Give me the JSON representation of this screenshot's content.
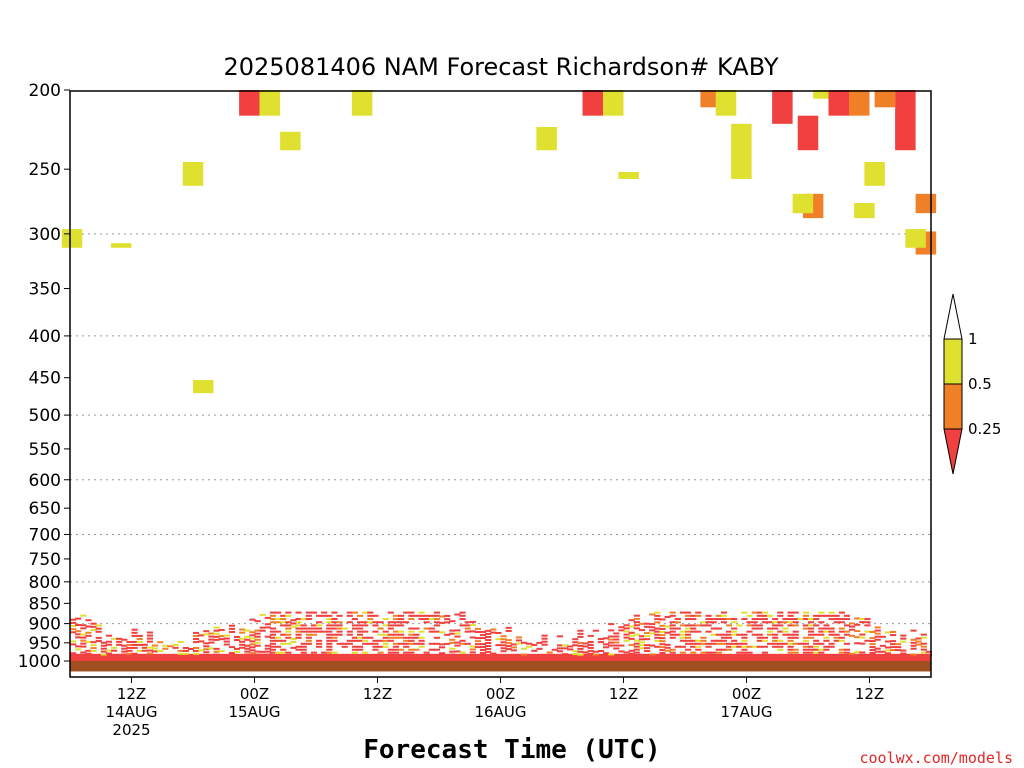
{
  "chart_data": {
    "type": "heatmap",
    "title": "2025081406 NAM Forecast Richardson# KABY",
    "xlabel": "Forecast Time (UTC)",
    "ylabel": "",
    "y_scale": "log",
    "y_inverted": true,
    "ylim": [
      1000,
      200
    ],
    "y_ticks": [
      200,
      250,
      300,
      350,
      400,
      450,
      500,
      550,
      600,
      650,
      700,
      750,
      800,
      850,
      900,
      950,
      1000
    ],
    "gridlines_at": [
      300,
      400,
      500,
      600,
      700,
      800,
      900
    ],
    "x_ticks": [
      {
        "line1": "12Z",
        "line2": "14AUG",
        "line3": "2025"
      },
      {
        "line1": "00Z",
        "line2": "15AUG",
        "line3": ""
      },
      {
        "line1": "12Z",
        "line2": "",
        "line3": ""
      },
      {
        "line1": "00Z",
        "line2": "16AUG",
        "line3": ""
      },
      {
        "line1": "12Z",
        "line2": "",
        "line3": ""
      },
      {
        "line1": "00Z",
        "line2": "17AUG",
        "line3": ""
      },
      {
        "line1": "12Z",
        "line2": "",
        "line3": ""
      }
    ],
    "forecast_hours_shown": [
      0,
      84
    ],
    "colorbar": {
      "levels": [
        "1",
        "0.5",
        "0.25"
      ],
      "colors": {
        "below_0_25": "#f04040",
        "0_25_to_0_5": "#f08028",
        "0_5_to_1": "#e0e030",
        "above_1": "#ffffff"
      }
    },
    "ground_color": "#a05020",
    "cells": [
      {
        "f": 17.5,
        "p1": 200,
        "p2": 215,
        "c": "red"
      },
      {
        "f": 19.5,
        "p1": 200,
        "p2": 215,
        "c": "yellow"
      },
      {
        "f": 21.5,
        "p1": 225,
        "p2": 237,
        "c": "yellow"
      },
      {
        "f": 28.5,
        "p1": 200,
        "p2": 215,
        "c": "yellow"
      },
      {
        "f": 46.5,
        "p1": 222,
        "p2": 237,
        "c": "yellow"
      },
      {
        "f": 51.0,
        "p1": 200,
        "p2": 215,
        "c": "red"
      },
      {
        "f": 53.0,
        "p1": 200,
        "p2": 215,
        "c": "yellow"
      },
      {
        "f": 62.5,
        "p1": 200,
        "p2": 210,
        "c": "orange"
      },
      {
        "f": 64.0,
        "p1": 200,
        "p2": 215,
        "c": "yellow"
      },
      {
        "f": 65.5,
        "p1": 220,
        "p2": 257,
        "c": "yellow"
      },
      {
        "f": 69.5,
        "p1": 200,
        "p2": 220,
        "c": "red"
      },
      {
        "f": 72.0,
        "p1": 215,
        "p2": 237,
        "c": "red"
      },
      {
        "f": 73.5,
        "p1": 200,
        "p2": 205,
        "c": "yellow"
      },
      {
        "f": 75.0,
        "p1": 200,
        "p2": 215,
        "c": "red"
      },
      {
        "f": 77.0,
        "p1": 200,
        "p2": 215,
        "c": "orange"
      },
      {
        "f": 81.5,
        "p1": 200,
        "p2": 237,
        "c": "red"
      },
      {
        "f": 79.5,
        "p1": 200,
        "p2": 210,
        "c": "orange"
      },
      {
        "f": 78.5,
        "p1": 245,
        "p2": 262,
        "c": "yellow"
      },
      {
        "f": 72.5,
        "p1": 268,
        "p2": 287,
        "c": "orange"
      },
      {
        "f": 71.5,
        "p1": 268,
        "p2": 283,
        "c": "yellow"
      },
      {
        "f": 77.5,
        "p1": 275,
        "p2": 287,
        "c": "yellow"
      },
      {
        "f": 83.5,
        "p1": 268,
        "p2": 283,
        "c": "orange"
      },
      {
        "f": 83.5,
        "p1": 298,
        "p2": 318,
        "c": "orange"
      },
      {
        "f": 82.5,
        "p1": 296,
        "p2": 312,
        "c": "yellow"
      },
      {
        "f": 0.2,
        "p1": 296,
        "p2": 312,
        "c": "yellow"
      },
      {
        "f": 5.0,
        "p1": 308,
        "p2": 312,
        "c": "yellow"
      },
      {
        "f": 12.0,
        "p1": 245,
        "p2": 262,
        "c": "yellow"
      },
      {
        "f": 13.0,
        "p1": 453,
        "p2": 470,
        "c": "yellow"
      },
      {
        "f": 54.5,
        "p1": 252,
        "p2": 257,
        "c": "yellow"
      }
    ],
    "bands": [
      {
        "f1": 0,
        "f2": 84,
        "ptop": 980,
        "pbot": 1000,
        "c": "red"
      },
      {
        "f1": 0,
        "f2": 84,
        "ptop": 1000,
        "pbot": 1030,
        "c": "ground"
      }
    ]
  }
}
